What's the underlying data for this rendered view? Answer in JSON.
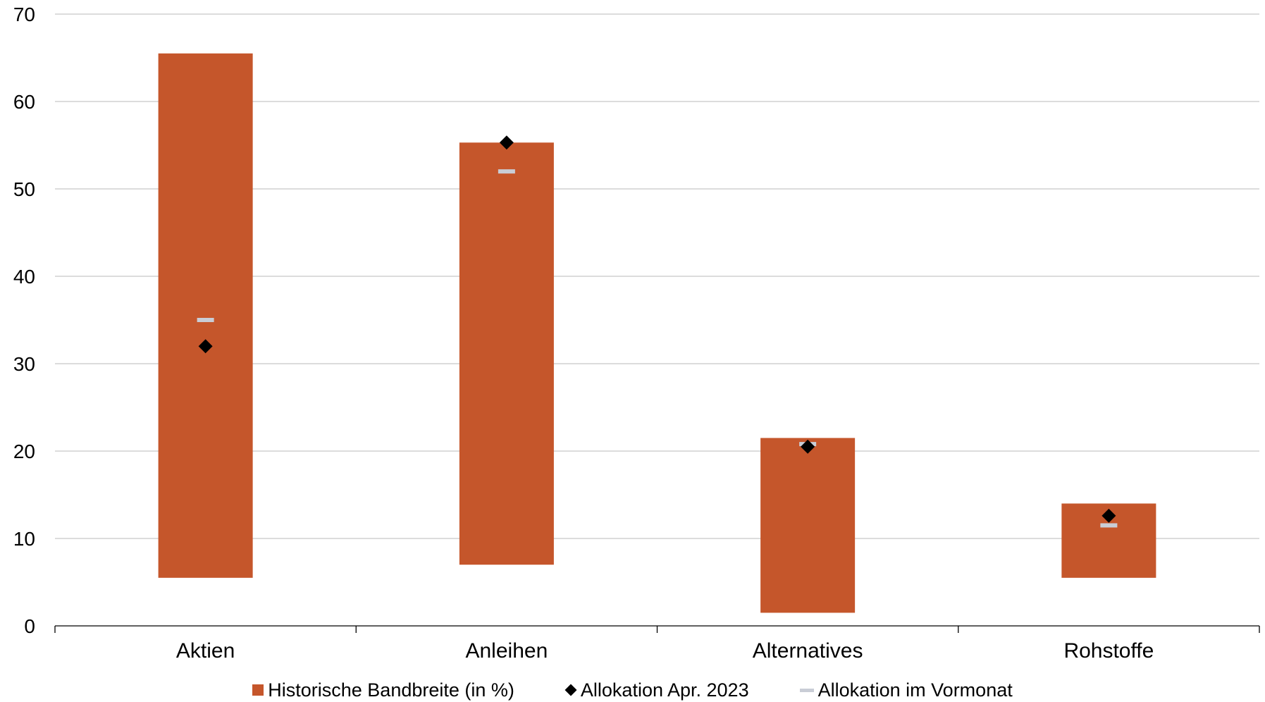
{
  "chart_data": {
    "type": "bar",
    "categories": [
      "Aktien",
      "Anleihen",
      "Alternatives",
      "Rohstoffe"
    ],
    "ylim": [
      0,
      70
    ],
    "yticks": [
      0,
      10,
      20,
      30,
      40,
      50,
      60,
      70
    ],
    "grid": true,
    "legend_position": "bottom",
    "series": [
      {
        "name": "Historische Bandbreite (in %)",
        "kind": "floating-bar",
        "low": [
          5.5,
          7.0,
          1.5,
          5.5
        ],
        "high": [
          65.5,
          55.3,
          21.5,
          14.0
        ],
        "color": "#c5562b"
      },
      {
        "name": "Allokation Apr. 2023",
        "kind": "diamond-marker",
        "values": [
          32.0,
          55.3,
          20.5,
          12.6
        ],
        "color": "#000000"
      },
      {
        "name": "Allokation im Vormonat",
        "kind": "dash-marker",
        "values": [
          35.0,
          52.0,
          20.8,
          11.5
        ],
        "color": "#c9cdd6"
      }
    ]
  }
}
